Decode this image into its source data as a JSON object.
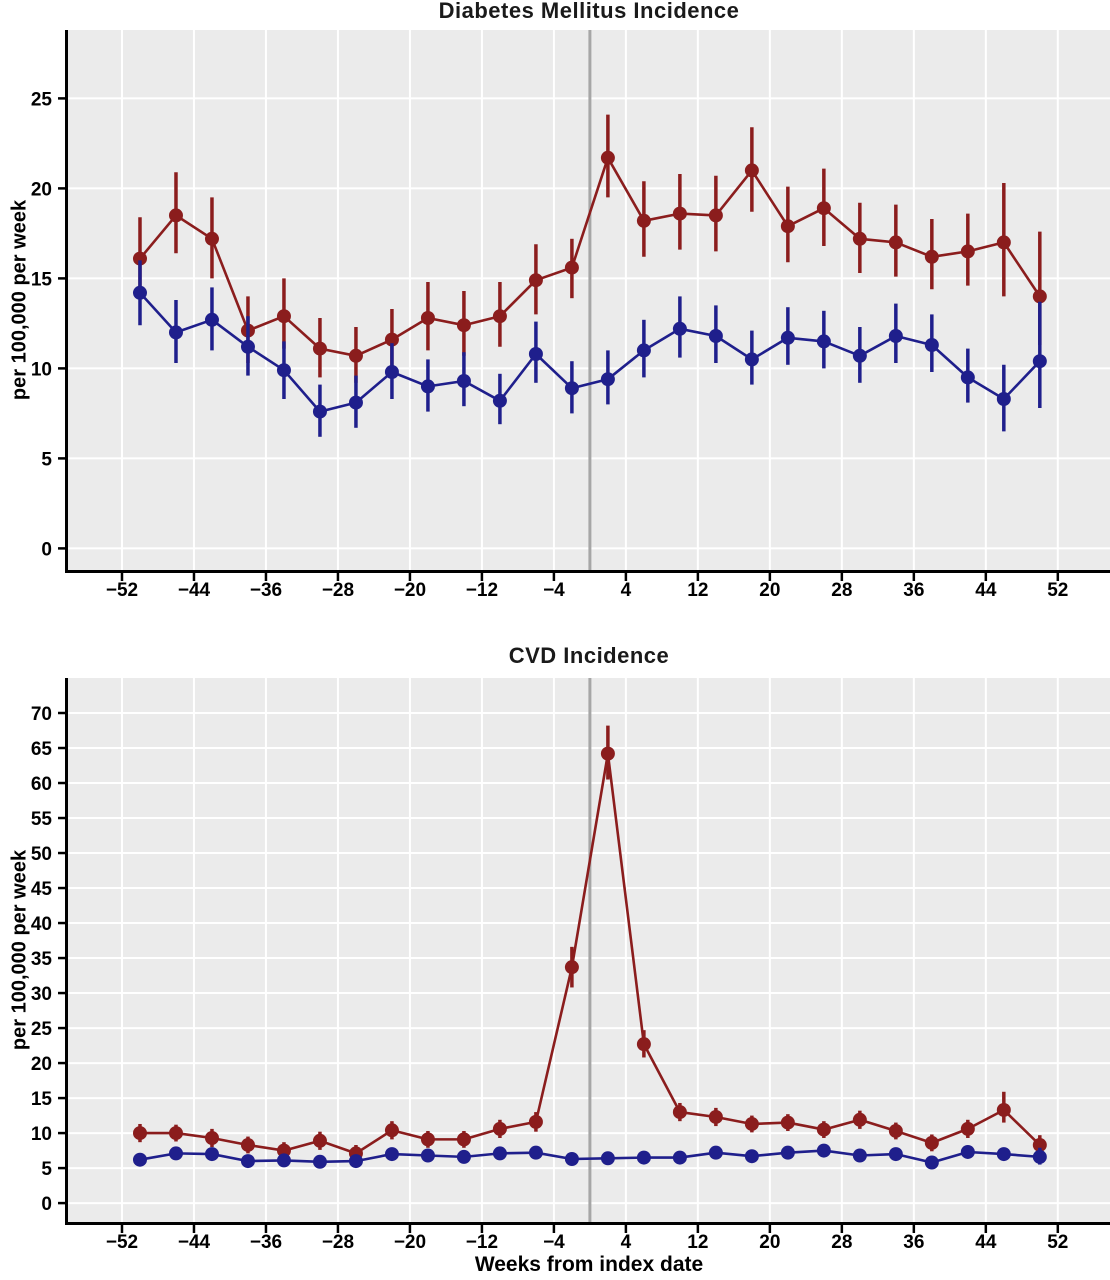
{
  "figure": {
    "background": "#ffffff",
    "panel_background": "#ebebeb",
    "gridline_color": "#ffffff",
    "reference_line_color": "#a6a6a6",
    "axis_color": "#000000",
    "series_colors": {
      "red": "#8b1d1d",
      "blue": "#1f1f8c"
    }
  },
  "chart_data": [
    {
      "type": "line",
      "title": "Diabetes Mellitus Incidence",
      "xlabel": "",
      "ylabel": "per 100,000 per week",
      "x_ticks": [
        -52,
        -44,
        -36,
        -28,
        -20,
        -12,
        -4,
        4,
        12,
        20,
        28,
        36,
        44,
        52
      ],
      "y_ticks": [
        0,
        5,
        10,
        15,
        20,
        25
      ],
      "xlim": [
        -58,
        57.8
      ],
      "ylim": [
        -1.2,
        28.8
      ],
      "grid": true,
      "legend": "none",
      "reference_line_x": 0,
      "x": [
        -50,
        -46,
        -42,
        -38,
        -34,
        -30,
        -26,
        -22,
        -18,
        -14,
        -10,
        -6,
        -2,
        2,
        6,
        10,
        14,
        18,
        22,
        26,
        30,
        34,
        38,
        42,
        46,
        50
      ],
      "series": [
        {
          "name": "red-series",
          "color": "#8b1d1d",
          "values": [
            16.1,
            18.5,
            17.2,
            12.1,
            12.9,
            11.1,
            10.7,
            11.6,
            12.8,
            12.4,
            12.9,
            14.9,
            15.6,
            21.7,
            18.2,
            18.6,
            18.5,
            21.0,
            17.9,
            18.9,
            17.2,
            17.0,
            16.2,
            16.5,
            17.0,
            14.0
          ],
          "ci_low": [
            14.0,
            16.4,
            15.0,
            10.3,
            11.1,
            9.5,
            9.2,
            10.0,
            11.0,
            10.7,
            11.2,
            13.0,
            13.9,
            19.5,
            16.2,
            16.6,
            16.5,
            18.7,
            15.9,
            16.8,
            15.3,
            15.1,
            14.4,
            14.6,
            14.0,
            11.3
          ],
          "ci_high": [
            18.4,
            20.9,
            19.5,
            14.0,
            15.0,
            12.8,
            12.3,
            13.3,
            14.8,
            14.3,
            14.8,
            16.9,
            17.2,
            24.1,
            20.4,
            20.8,
            20.7,
            23.4,
            20.1,
            21.1,
            19.2,
            19.1,
            18.3,
            18.6,
            20.3,
            17.6
          ]
        },
        {
          "name": "blue-series",
          "color": "#1f1f8c",
          "values": [
            14.2,
            12.0,
            12.7,
            11.2,
            9.9,
            7.6,
            8.1,
            9.8,
            9.0,
            9.3,
            8.2,
            10.8,
            8.9,
            9.4,
            11.0,
            12.2,
            11.8,
            10.5,
            11.7,
            11.5,
            10.7,
            11.8,
            11.3,
            9.5,
            8.3,
            10.4
          ],
          "ci_low": [
            12.4,
            10.3,
            11.0,
            9.6,
            8.3,
            6.2,
            6.7,
            8.3,
            7.6,
            7.9,
            6.9,
            9.2,
            7.5,
            8.0,
            9.5,
            10.6,
            10.3,
            9.1,
            10.2,
            10.0,
            9.2,
            10.3,
            9.8,
            8.1,
            6.5,
            7.8
          ],
          "ci_high": [
            16.0,
            13.8,
            14.5,
            12.9,
            11.5,
            9.1,
            9.6,
            11.4,
            10.5,
            10.9,
            9.7,
            12.6,
            10.4,
            11.0,
            12.7,
            14.0,
            13.5,
            12.1,
            13.4,
            13.2,
            12.3,
            13.6,
            13.0,
            11.1,
            10.2,
            13.7
          ]
        }
      ]
    },
    {
      "type": "line",
      "title": "CVD Incidence",
      "xlabel": "Weeks from index date",
      "ylabel": "per 100,000 per week",
      "x_ticks": [
        -52,
        -44,
        -36,
        -28,
        -20,
        -12,
        -4,
        4,
        12,
        20,
        28,
        36,
        44,
        52
      ],
      "y_ticks": [
        0,
        5,
        10,
        15,
        20,
        25,
        30,
        35,
        40,
        45,
        50,
        55,
        60,
        65,
        70
      ],
      "xlim": [
        -58,
        57.8
      ],
      "ylim": [
        -2.7,
        75.0
      ],
      "grid": true,
      "legend": "none",
      "reference_line_x": 0,
      "x": [
        -50,
        -46,
        -42,
        -38,
        -34,
        -30,
        -26,
        -22,
        -18,
        -14,
        -10,
        -6,
        -2,
        2,
        6,
        10,
        14,
        18,
        22,
        26,
        30,
        34,
        38,
        42,
        46,
        50
      ],
      "series": [
        {
          "name": "red-series",
          "color": "#8b1d1d",
          "values": [
            10.0,
            10.0,
            9.3,
            8.3,
            7.5,
            8.9,
            7.1,
            10.4,
            9.1,
            9.1,
            10.6,
            11.6,
            33.7,
            64.2,
            22.7,
            13.0,
            12.3,
            11.3,
            11.5,
            10.5,
            11.9,
            10.3,
            8.6,
            10.6,
            13.3,
            8.3
          ],
          "ci_low": [
            8.7,
            8.8,
            8.0,
            7.1,
            6.3,
            7.6,
            5.9,
            9.1,
            7.9,
            7.9,
            9.3,
            10.2,
            30.8,
            60.5,
            20.8,
            11.7,
            11.0,
            10.1,
            10.3,
            9.3,
            10.6,
            9.1,
            7.4,
            9.3,
            11.5,
            6.9
          ],
          "ci_high": [
            11.3,
            11.2,
            10.6,
            9.5,
            8.7,
            10.2,
            8.3,
            11.7,
            10.3,
            10.3,
            11.9,
            13.0,
            36.6,
            68.2,
            24.7,
            14.3,
            13.6,
            12.5,
            12.7,
            11.7,
            13.2,
            11.5,
            9.8,
            11.9,
            15.9,
            9.7
          ]
        },
        {
          "name": "blue-series",
          "color": "#1f1f8c",
          "values": [
            6.2,
            7.1,
            7.0,
            6.0,
            6.1,
            5.9,
            6.0,
            7.0,
            6.8,
            6.6,
            7.1,
            7.2,
            6.3,
            6.4,
            6.5,
            6.5,
            7.2,
            6.7,
            7.2,
            7.5,
            6.8,
            7.0,
            5.8,
            7.3,
            7.0,
            6.6
          ],
          "ci_low": [
            5.3,
            6.2,
            6.1,
            5.1,
            5.2,
            5.0,
            5.1,
            6.1,
            5.9,
            5.7,
            6.2,
            6.3,
            5.4,
            5.5,
            5.6,
            5.6,
            6.3,
            5.8,
            6.3,
            6.6,
            5.9,
            6.1,
            4.9,
            6.4,
            6.1,
            5.5
          ],
          "ci_high": [
            7.1,
            8.0,
            7.9,
            6.9,
            7.0,
            6.8,
            6.9,
            7.9,
            7.7,
            7.5,
            8.0,
            8.1,
            7.2,
            7.3,
            7.4,
            7.4,
            8.1,
            7.6,
            8.1,
            8.4,
            7.7,
            7.9,
            6.7,
            8.2,
            7.9,
            7.9
          ]
        }
      ]
    }
  ]
}
